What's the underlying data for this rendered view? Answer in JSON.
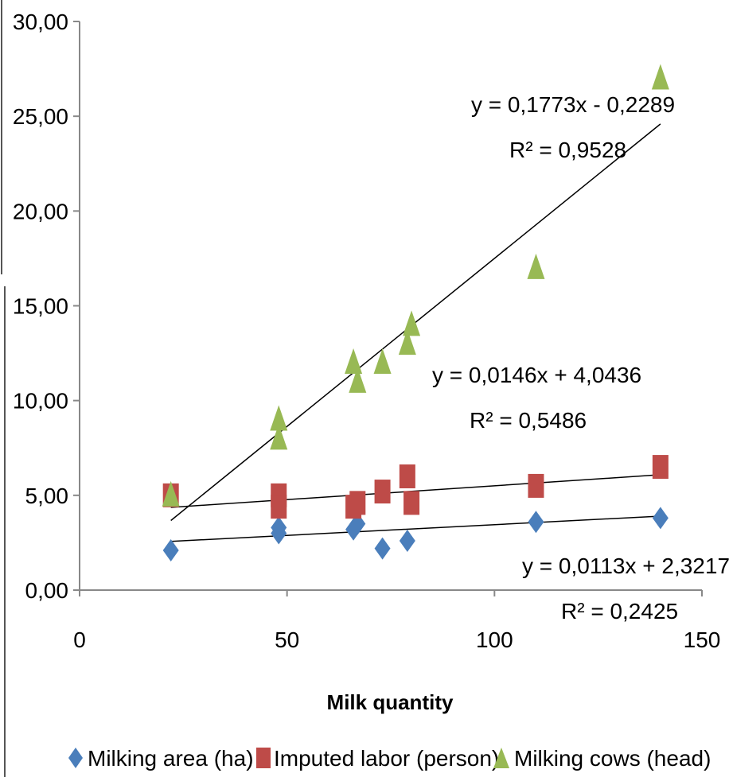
{
  "chart_data": {
    "type": "scatter",
    "title": "",
    "xlabel": "Milk quantity",
    "ylabel": "",
    "xlim": [
      0,
      150
    ],
    "ylim": [
      0,
      30
    ],
    "x_ticks": [
      "0",
      "50",
      "100",
      "150"
    ],
    "y_ticks": [
      "0,00",
      "5,00",
      "10,00",
      "15,00",
      "20,00",
      "25,00",
      "30,00"
    ],
    "grid": false,
    "legend_position": "bottom",
    "series": [
      {
        "name": "Milking area (ha)",
        "marker": "diamond",
        "color": "#4a7ebb",
        "points": [
          [
            22,
            2.1
          ],
          [
            48,
            3.3
          ],
          [
            48,
            3.0
          ],
          [
            66,
            3.2
          ],
          [
            67,
            3.5
          ],
          [
            73,
            2.2
          ],
          [
            79,
            2.6
          ],
          [
            110,
            3.6
          ],
          [
            140,
            3.8
          ]
        ],
        "trendline": {
          "slope": 0.0113,
          "intercept": 2.3217,
          "x_range": [
            22,
            140
          ],
          "equation": "y = 0,0113x + 2,3217",
          "r2": "R² = 0,2425"
        }
      },
      {
        "name": "Imputed labor (person)",
        "marker": "square",
        "color": "#be4b48",
        "points": [
          [
            22,
            5.0
          ],
          [
            48,
            5.0
          ],
          [
            48,
            4.4
          ],
          [
            66,
            4.4
          ],
          [
            67,
            4.6
          ],
          [
            73,
            5.2
          ],
          [
            79,
            6.0
          ],
          [
            80,
            4.6
          ],
          [
            110,
            5.5
          ],
          [
            140,
            6.5
          ]
        ],
        "trendline": {
          "slope": 0.0146,
          "intercept": 4.0436,
          "x_range": [
            22,
            140
          ],
          "equation": "y = 0,0146x + 4,0436",
          "r2": "R² = 0,5486"
        }
      },
      {
        "name": "Milking cows (head)",
        "marker": "triangle",
        "color": "#98b954",
        "points": [
          [
            22,
            5.0
          ],
          [
            48,
            9.0
          ],
          [
            48,
            8.0
          ],
          [
            66,
            12.0
          ],
          [
            67,
            11.0
          ],
          [
            73,
            12.0
          ],
          [
            79,
            13.0
          ],
          [
            80,
            14.0
          ],
          [
            110,
            17.0
          ],
          [
            140,
            27.0
          ]
        ],
        "trendline": {
          "slope": 0.1773,
          "intercept": -0.2289,
          "x_range": [
            22,
            140
          ],
          "equation": "y = 0,1773x - 0,2289",
          "r2": "R² = 0,9528"
        }
      }
    ]
  }
}
